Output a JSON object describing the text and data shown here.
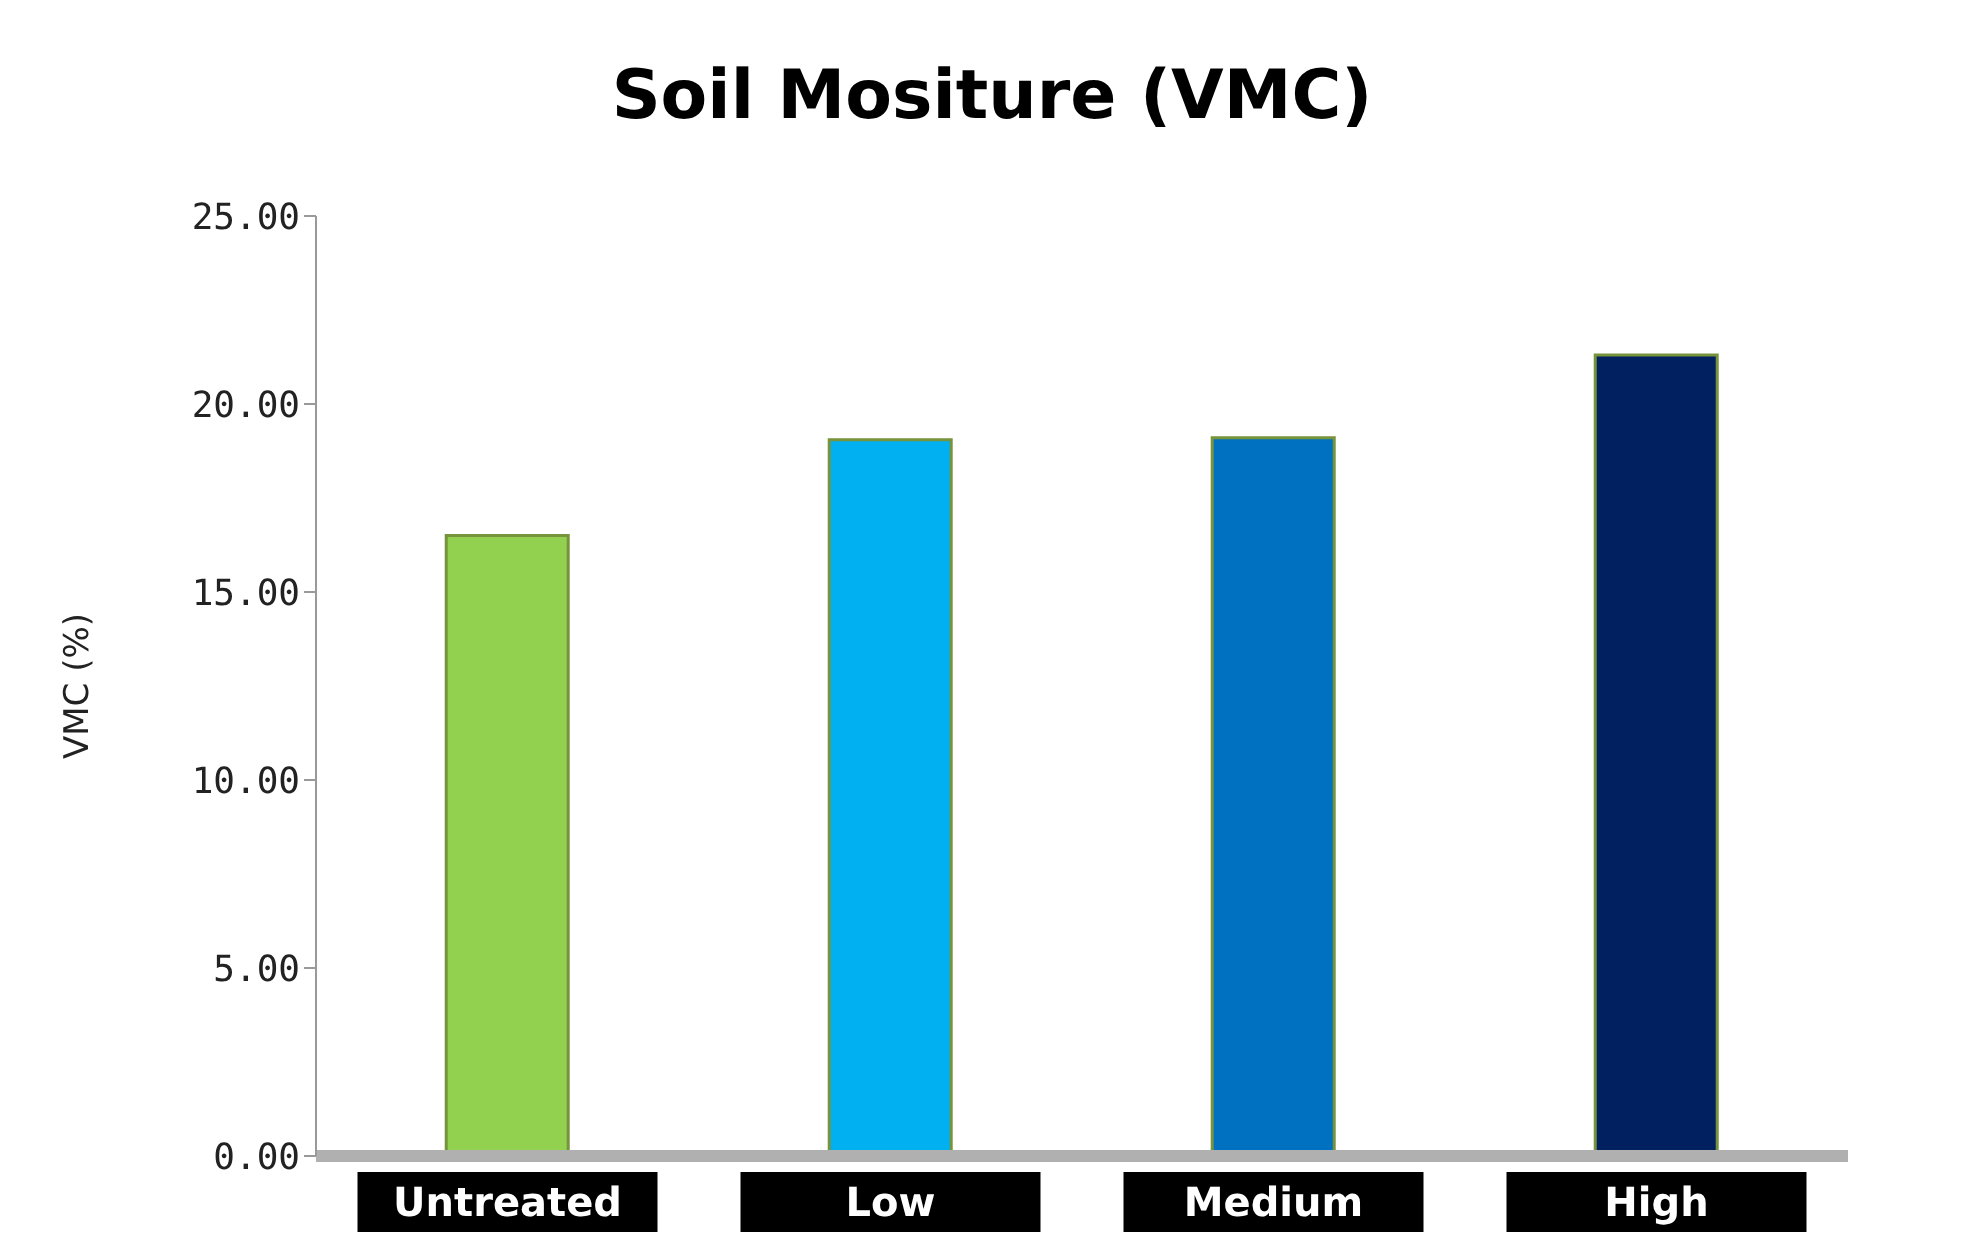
{
  "chart_data": {
    "type": "bar",
    "title": "Soil Mositure (VMC)",
    "ylabel": "VMC (%)",
    "categories": [
      "Untreated",
      "Low",
      "Medium",
      "High"
    ],
    "values": [
      16.5,
      19.05,
      19.1,
      21.3
    ],
    "colors": [
      "#92d050",
      "#00b0f0",
      "#0070c0",
      "#002060"
    ],
    "ylim": [
      0,
      25
    ],
    "yticks": [
      {
        "value": 0,
        "label": "0.00"
      },
      {
        "value": 5,
        "label": "5.00"
      },
      {
        "value": 10,
        "label": "10.00"
      },
      {
        "value": 15,
        "label": "15.00"
      },
      {
        "value": 20,
        "label": "20.00"
      },
      {
        "value": 25,
        "label": "25.00"
      }
    ],
    "grid": false,
    "legend": false
  }
}
